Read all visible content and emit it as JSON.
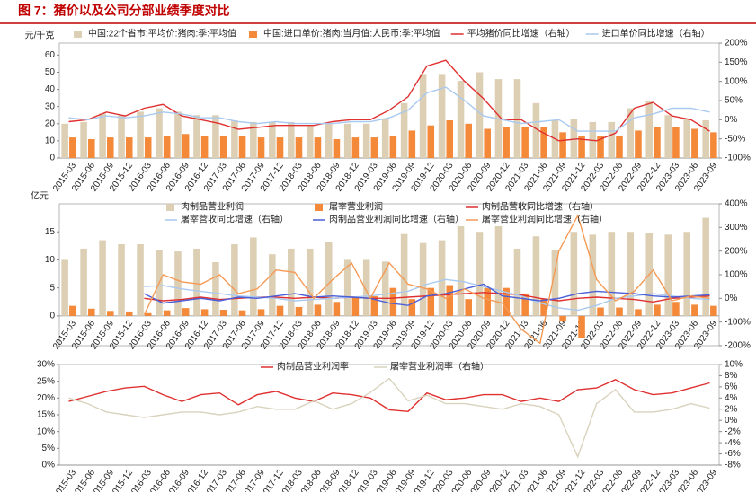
{
  "title": "图 7：猪价以及公司分部业绩季度对比",
  "chart_data": [
    {
      "type": "combo",
      "ylabel": "元/千克",
      "categories": [
        "2015-03",
        "2015-06",
        "2015-09",
        "2015-12",
        "2016-03",
        "2016-06",
        "2016-09",
        "2016-12",
        "2017-03",
        "2017-06",
        "2017-09",
        "2017-12",
        "2018-03",
        "2018-06",
        "2018-09",
        "2018-12",
        "2019-03",
        "2019-06",
        "2019-09",
        "2019-12",
        "2020-03",
        "2020-06",
        "2020-09",
        "2020-12",
        "2021-03",
        "2021-06",
        "2021-09",
        "2021-12",
        "2022-03",
        "2022-06",
        "2022-09",
        "2022-12",
        "2023-03",
        "2023-06",
        "2023-09"
      ],
      "ylim": [
        0,
        67
      ],
      "yticks": [
        0,
        10,
        20,
        30,
        40,
        50,
        60
      ],
      "y2lim": [
        -100,
        200
      ],
      "y2ticks": [
        {
          "value": -100,
          "label": "-100%"
        },
        {
          "value": -50,
          "label": "-50%"
        },
        {
          "value": 0,
          "label": "0%"
        },
        {
          "value": 50,
          "label": "50%"
        },
        {
          "value": 100,
          "label": "100%"
        },
        {
          "value": 150,
          "label": "150%"
        },
        {
          "value": 200,
          "label": "200%"
        }
      ],
      "series": [
        {
          "name": "中国:22个省市:平均价:猪肉:季:平均值",
          "type": "bar",
          "color": "#dccfb4",
          "values": [
            20,
            21,
            26,
            25,
            27,
            29,
            27,
            25,
            25,
            22,
            21,
            21,
            21,
            19,
            20,
            20,
            20,
            23,
            32,
            49,
            49,
            45,
            50,
            46,
            46,
            32,
            22,
            23,
            21,
            21,
            29,
            33,
            25,
            23,
            22
          ]
        },
        {
          "name": "中国:进口单价:猪肉:当月值:人民币:季:平均值",
          "type": "bar",
          "color": "#f4893a",
          "values": [
            12,
            11,
            12,
            12,
            12,
            13,
            14,
            13,
            13,
            13,
            12,
            12,
            12,
            12,
            11,
            12,
            12,
            13,
            16,
            19,
            22,
            20,
            17,
            18,
            18,
            18,
            15,
            13,
            13,
            13,
            16,
            18,
            18,
            17,
            15
          ]
        },
        {
          "name": "平均猪价同比增速（右轴）",
          "type": "line",
          "axis": "y2",
          "color": "#e03030",
          "values": [
            -5,
            0,
            20,
            10,
            30,
            40,
            10,
            0,
            -10,
            -25,
            -20,
            -15,
            -15,
            -15,
            -5,
            0,
            0,
            25,
            60,
            140,
            155,
            100,
            55,
            0,
            0,
            -30,
            -55,
            -50,
            -55,
            -35,
            30,
            45,
            10,
            0,
            -30
          ]
        },
        {
          "name": "进口单价同比增速（右轴）",
          "type": "line",
          "axis": "y2",
          "color": "#a9c9f0",
          "values": [
            5,
            0,
            10,
            5,
            10,
            20,
            15,
            5,
            5,
            -5,
            -10,
            -5,
            -10,
            -10,
            -10,
            -5,
            -5,
            5,
            25,
            70,
            85,
            50,
            10,
            0,
            -10,
            -5,
            0,
            -30,
            -30,
            -30,
            5,
            15,
            30,
            30,
            20
          ]
        }
      ]
    },
    {
      "type": "combo",
      "ylabel": "亿元",
      "categories": [
        "2015-03",
        "2015-06",
        "2015-09",
        "2015-12",
        "2016-03",
        "2016-06",
        "2016-09",
        "2016-12",
        "2017-03",
        "2017-06",
        "2017-09",
        "2017-12",
        "2018-03",
        "2018-06",
        "2018-09",
        "2018-12",
        "2019-03",
        "2019-06",
        "2019-09",
        "2019-12",
        "2020-03",
        "2020-06",
        "2020-09",
        "2020-12",
        "2021-03",
        "2021-06",
        "2021-09",
        "2021-12",
        "2022-03",
        "2022-06",
        "2022-09",
        "2022-12",
        "2023-03",
        "2023-06",
        "2023-09"
      ],
      "ylim": [
        -5.3,
        20
      ],
      "yticks": [
        0,
        5,
        10,
        15
      ],
      "y2lim": [
        -200,
        400
      ],
      "y2ticks": [
        {
          "value": -200,
          "label": "-200%"
        },
        {
          "value": -100,
          "label": "-100%"
        },
        {
          "value": 0,
          "label": "0%"
        },
        {
          "value": 100,
          "label": "100%"
        },
        {
          "value": 200,
          "label": "200%"
        },
        {
          "value": 300,
          "label": "300%"
        },
        {
          "value": 400,
          "label": "400%"
        }
      ],
      "series": [
        {
          "name": "肉制品营业利润",
          "type": "bar",
          "color": "#dccfb4",
          "values": [
            10,
            12,
            13.5,
            12.8,
            12.8,
            11.8,
            11.5,
            12,
            9.6,
            12.8,
            14,
            11,
            12,
            12,
            13.2,
            10,
            10,
            9.7,
            14.6,
            13,
            13.5,
            16,
            15,
            16,
            12,
            14.2,
            11.8,
            15,
            14.5,
            15,
            15,
            14.8,
            14.5,
            15,
            17.5
          ]
        },
        {
          "name": "屠宰营业利润",
          "type": "bar",
          "color": "#f4893a",
          "values": [
            1.8,
            1.3,
            0.9,
            0.8,
            0.5,
            1.0,
            1.4,
            1.2,
            1.1,
            1.0,
            1.2,
            1.8,
            1.6,
            2.0,
            2.5,
            3.5,
            3.5,
            5.0,
            3.0,
            5.0,
            5.5,
            3.0,
            5.0,
            5.0,
            4.0,
            3.0,
            -1.0,
            -4.0,
            1.5,
            1.5,
            1.2,
            2.0,
            2.5,
            2.0,
            1.8
          ]
        },
        {
          "name": "肉制品营收同比增速（右轴）",
          "type": "line",
          "axis": "y2",
          "color": "#e03030",
          "values": [
            null,
            null,
            null,
            null,
            0,
            -10,
            -5,
            5,
            -5,
            0,
            5,
            5,
            0,
            5,
            0,
            5,
            0,
            0,
            5,
            10,
            15,
            20,
            25,
            20,
            15,
            0,
            -10,
            0,
            5,
            0,
            -5,
            -15,
            0,
            5,
            10
          ]
        },
        {
          "name": "屠宰营收同比增速（右轴）",
          "type": "line",
          "axis": "y2",
          "color": "#a9c9f0",
          "values": [
            null,
            null,
            null,
            null,
            50,
            55,
            40,
            30,
            20,
            10,
            5,
            0,
            -10,
            -5,
            0,
            5,
            10,
            20,
            30,
            60,
            80,
            70,
            50,
            30,
            10,
            -20,
            -40,
            -50,
            -30,
            0,
            10,
            20,
            10,
            0,
            -5
          ]
        },
        {
          "name": "肉制品营业利润同比增速（右轴）",
          "type": "line",
          "axis": "y2",
          "color": "#4a5fd8",
          "values": [
            null,
            null,
            null,
            null,
            20,
            -20,
            -10,
            0,
            -10,
            5,
            0,
            10,
            20,
            5,
            10,
            5,
            0,
            -20,
            -30,
            10,
            20,
            40,
            60,
            10,
            0,
            -10,
            0,
            20,
            30,
            25,
            20,
            10,
            5,
            10,
            15
          ]
        },
        {
          "name": "屠宰营业利润同比增速（右轴）",
          "type": "line",
          "axis": "y2",
          "color": "#f59a55",
          "values": [
            null,
            null,
            null,
            null,
            -70,
            100,
            70,
            60,
            100,
            20,
            40,
            120,
            110,
            0,
            80,
            150,
            0,
            150,
            60,
            40,
            0,
            40,
            0,
            -20,
            -130,
            -190,
            200,
            350,
            80,
            -10,
            30,
            120,
            -10,
            10,
            0
          ]
        }
      ]
    },
    {
      "type": "combo",
      "categories": [
        "2015-03",
        "2015-06",
        "2015-09",
        "2015-12",
        "2016-03",
        "2016-06",
        "2016-09",
        "2016-12",
        "2017-03",
        "2017-06",
        "2017-09",
        "2017-12",
        "2018-03",
        "2018-06",
        "2018-09",
        "2018-12",
        "2019-03",
        "2019-06",
        "2019-09",
        "2019-12",
        "2020-03",
        "2020-06",
        "2020-09",
        "2020-12",
        "2021-03",
        "2021-06",
        "2021-09",
        "2021-12",
        "2022-03",
        "2022-06",
        "2022-09",
        "2022-12",
        "2023-03",
        "2023-06",
        "2023-09"
      ],
      "ylim": [
        0,
        30
      ],
      "yticks": [
        {
          "value": 0,
          "label": "0%"
        },
        {
          "value": 5,
          "label": "5%"
        },
        {
          "value": 10,
          "label": "10%"
        },
        {
          "value": 15,
          "label": "15%"
        },
        {
          "value": 20,
          "label": "20%"
        },
        {
          "value": 25,
          "label": "25%"
        },
        {
          "value": 30,
          "label": "30%"
        }
      ],
      "y2lim": [
        -8,
        10
      ],
      "y2ticks": [
        {
          "value": -8,
          "label": "-8%"
        },
        {
          "value": -6,
          "label": "-6%"
        },
        {
          "value": -4,
          "label": "-4%"
        },
        {
          "value": -2,
          "label": "-2%"
        },
        {
          "value": 0,
          "label": "0%"
        },
        {
          "value": 2,
          "label": "2%"
        },
        {
          "value": 4,
          "label": "4%"
        },
        {
          "value": 6,
          "label": "6%"
        },
        {
          "value": 8,
          "label": "8%"
        },
        {
          "value": 10,
          "label": "10%"
        }
      ],
      "series": [
        {
          "name": "肉制品营业利润率",
          "type": "line",
          "color": "#e03030",
          "values": [
            19,
            20.5,
            22,
            23,
            23.5,
            21,
            19,
            21,
            21.5,
            18,
            21,
            22,
            20,
            19,
            21.5,
            21,
            20,
            16.5,
            16,
            21.5,
            19.5,
            20,
            21,
            21,
            19,
            20,
            19,
            22.5,
            23,
            25.5,
            22.5,
            21,
            21.5,
            23,
            24.5
          ]
        },
        {
          "name": "屠宰营业利润率（右轴）",
          "type": "line",
          "axis": "y2",
          "color": "#d9d2bd",
          "values": [
            4,
            3,
            1.5,
            1,
            0.5,
            1,
            1.5,
            1.5,
            1,
            1.5,
            2.5,
            2,
            2,
            3.5,
            2,
            3,
            5,
            7.5,
            3.5,
            4.5,
            3,
            3,
            2.5,
            2,
            3,
            2.5,
            1,
            -6.5,
            3,
            5.5,
            1.5,
            1.5,
            2,
            3,
            2.2
          ]
        }
      ]
    }
  ]
}
